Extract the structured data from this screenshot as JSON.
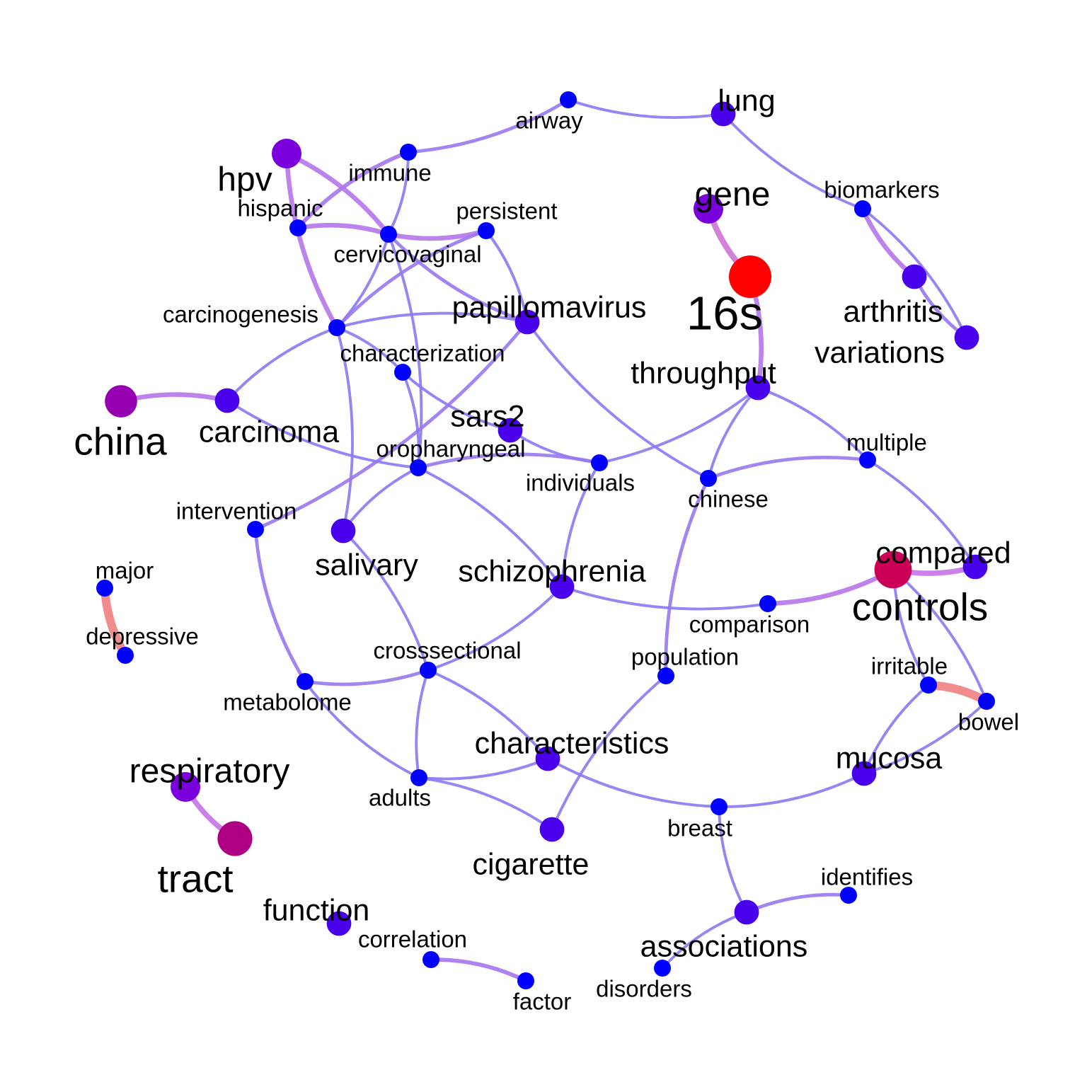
{
  "colors": {
    "low": "#0000FF",
    "mid": "#7A00DC",
    "high": "#FF0000",
    "edge_low": "#7A7AF5",
    "edge_mid": "#C474E8",
    "edge_high": "#F08080"
  },
  "nodes": [
    {
      "id": "airway",
      "label": "airway",
      "weight": 0.0
    },
    {
      "id": "lung",
      "label": "lung",
      "weight": 0.3
    },
    {
      "id": "immune",
      "label": "immune",
      "weight": 0.0
    },
    {
      "id": "hpv",
      "label": "hpv",
      "weight": 0.5
    },
    {
      "id": "gene",
      "label": "gene",
      "weight": 0.5
    },
    {
      "id": "biomarkers",
      "label": "biomarkers",
      "weight": 0.0
    },
    {
      "id": "hispanic",
      "label": "hispanic",
      "weight": 0.0
    },
    {
      "id": "persistent",
      "label": "persistent",
      "weight": 0.0
    },
    {
      "id": "cervicovaginal",
      "label": "cervicovaginal",
      "weight": 0.0
    },
    {
      "id": "16s",
      "label": "16s",
      "weight": 1.0
    },
    {
      "id": "arthritis",
      "label": "arthritis",
      "weight": 0.3
    },
    {
      "id": "papillomavirus",
      "label": "papillomavirus",
      "weight": 0.3
    },
    {
      "id": "carcinogenesis",
      "label": "carcinogenesis",
      "weight": 0.0
    },
    {
      "id": "variations",
      "label": "variations",
      "weight": 0.3
    },
    {
      "id": "characterization",
      "label": "characterization",
      "weight": 0.0
    },
    {
      "id": "throughput",
      "label": "throughput",
      "weight": 0.3
    },
    {
      "id": "china",
      "label": "china",
      "weight": 0.6
    },
    {
      "id": "carcinoma",
      "label": "carcinoma",
      "weight": 0.3
    },
    {
      "id": "sars2",
      "label": "sars2",
      "weight": 0.3
    },
    {
      "id": "multiple",
      "label": "multiple",
      "weight": 0.0
    },
    {
      "id": "oropharyngeal",
      "label": "oropharyngeal",
      "weight": 0.0
    },
    {
      "id": "individuals",
      "label": "individuals",
      "weight": 0.0
    },
    {
      "id": "chinese",
      "label": "chinese",
      "weight": 0.0
    },
    {
      "id": "intervention",
      "label": "intervention",
      "weight": 0.0
    },
    {
      "id": "salivary",
      "label": "salivary",
      "weight": 0.3
    },
    {
      "id": "schizophrenia",
      "label": "schizophrenia",
      "weight": 0.3
    },
    {
      "id": "compared",
      "label": "compared",
      "weight": 0.3
    },
    {
      "id": "controls",
      "label": "controls",
      "weight": 0.8
    },
    {
      "id": "major",
      "label": "major",
      "weight": 0.0
    },
    {
      "id": "depressive",
      "label": "depressive",
      "weight": 0.0
    },
    {
      "id": "comparison",
      "label": "comparison",
      "weight": 0.0
    },
    {
      "id": "crosssectional",
      "label": "crosssectional",
      "weight": 0.0
    },
    {
      "id": "population",
      "label": "population",
      "weight": 0.0
    },
    {
      "id": "irritable",
      "label": "irritable",
      "weight": 0.0
    },
    {
      "id": "metabolome",
      "label": "metabolome",
      "weight": 0.0
    },
    {
      "id": "bowel",
      "label": "bowel",
      "weight": 0.0
    },
    {
      "id": "characteristics",
      "label": "characteristics",
      "weight": 0.3
    },
    {
      "id": "mucosa",
      "label": "mucosa",
      "weight": 0.3
    },
    {
      "id": "respiratory",
      "label": "respiratory",
      "weight": 0.5
    },
    {
      "id": "adults",
      "label": "adults",
      "weight": 0.0
    },
    {
      "id": "breast",
      "label": "breast",
      "weight": 0.0
    },
    {
      "id": "tract",
      "label": "tract",
      "weight": 0.7
    },
    {
      "id": "cigarette",
      "label": "cigarette",
      "weight": 0.3
    },
    {
      "id": "identifies",
      "label": "identifies",
      "weight": 0.0
    },
    {
      "id": "function",
      "label": "function",
      "weight": 0.3
    },
    {
      "id": "associations",
      "label": "associations",
      "weight": 0.3
    },
    {
      "id": "correlation",
      "label": "correlation",
      "weight": 0.0
    },
    {
      "id": "disorders",
      "label": "disorders",
      "weight": 0.0
    },
    {
      "id": "factor",
      "label": "factor",
      "weight": 0.0
    }
  ],
  "edges": [
    {
      "source": "airway",
      "target": "lung",
      "weight": 0.1
    },
    {
      "source": "airway",
      "target": "immune",
      "weight": 0.2
    },
    {
      "source": "lung",
      "target": "biomarkers",
      "weight": 0.1
    },
    {
      "source": "immune",
      "target": "cervicovaginal",
      "weight": 0.1
    },
    {
      "source": "immune",
      "target": "hispanic",
      "weight": 0.3
    },
    {
      "source": "hpv",
      "target": "cervicovaginal",
      "weight": 0.4
    },
    {
      "source": "hpv",
      "target": "carcinogenesis",
      "weight": 0.4
    },
    {
      "source": "hispanic",
      "target": "cervicovaginal",
      "weight": 0.4
    },
    {
      "source": "cervicovaginal",
      "target": "persistent",
      "weight": 0.4
    },
    {
      "source": "cervicovaginal",
      "target": "carcinogenesis",
      "weight": 0.1
    },
    {
      "source": "cervicovaginal",
      "target": "papillomavirus",
      "weight": 0.2
    },
    {
      "source": "cervicovaginal",
      "target": "oropharyngeal",
      "weight": 0.1
    },
    {
      "source": "persistent",
      "target": "carcinogenesis",
      "weight": 0.2
    },
    {
      "source": "persistent",
      "target": "papillomavirus",
      "weight": 0.1
    },
    {
      "source": "gene",
      "target": "16s",
      "weight": 0.6
    },
    {
      "source": "16s",
      "target": "throughput",
      "weight": 0.4
    },
    {
      "source": "biomarkers",
      "target": "arthritis",
      "weight": 0.4
    },
    {
      "source": "biomarkers",
      "target": "variations",
      "weight": 0.1
    },
    {
      "source": "arthritis",
      "target": "variations",
      "weight": 0.2
    },
    {
      "source": "carcinogenesis",
      "target": "papillomavirus",
      "weight": 0.1
    },
    {
      "source": "carcinogenesis",
      "target": "carcinoma",
      "weight": 0.1
    },
    {
      "source": "carcinogenesis",
      "target": "salivary",
      "weight": 0.1
    },
    {
      "source": "papillomavirus",
      "target": "chinese",
      "weight": 0.1
    },
    {
      "source": "papillomavirus",
      "target": "intervention",
      "weight": 0.2
    },
    {
      "source": "characterization",
      "target": "sars2",
      "weight": 0.1
    },
    {
      "source": "characterization",
      "target": "oropharyngeal",
      "weight": 0.1
    },
    {
      "source": "characterization",
      "target": "carcinogenesis",
      "weight": 0.1
    },
    {
      "source": "china",
      "target": "carcinoma",
      "weight": 0.4
    },
    {
      "source": "carcinoma",
      "target": "oropharyngeal",
      "weight": 0.1
    },
    {
      "source": "throughput",
      "target": "individuals",
      "weight": 0.1
    },
    {
      "source": "throughput",
      "target": "chinese",
      "weight": 0.1
    },
    {
      "source": "throughput",
      "target": "multiple",
      "weight": 0.1
    },
    {
      "source": "sars2",
      "target": "individuals",
      "weight": 0.1
    },
    {
      "source": "oropharyngeal",
      "target": "individuals",
      "weight": 0.2
    },
    {
      "source": "oropharyngeal",
      "target": "salivary",
      "weight": 0.1
    },
    {
      "source": "oropharyngeal",
      "target": "schizophrenia",
      "weight": 0.1
    },
    {
      "source": "individuals",
      "target": "schizophrenia",
      "weight": 0.1
    },
    {
      "source": "chinese",
      "target": "multiple",
      "weight": 0.2
    },
    {
      "source": "chinese",
      "target": "population",
      "weight": 0.2
    },
    {
      "source": "multiple",
      "target": "compared",
      "weight": 0.1
    },
    {
      "source": "intervention",
      "target": "metabolome",
      "weight": 0.2
    },
    {
      "source": "salivary",
      "target": "crosssectional",
      "weight": 0.1
    },
    {
      "source": "schizophrenia",
      "target": "comparison",
      "weight": 0.1
    },
    {
      "source": "schizophrenia",
      "target": "crosssectional",
      "weight": 0.1
    },
    {
      "source": "controls",
      "target": "compared",
      "weight": 0.5
    },
    {
      "source": "controls",
      "target": "comparison",
      "weight": 0.4
    },
    {
      "source": "controls",
      "target": "irritable",
      "weight": 0.1
    },
    {
      "source": "controls",
      "target": "bowel",
      "weight": 0.1
    },
    {
      "source": "major",
      "target": "depressive",
      "weight": 1.0
    },
    {
      "source": "crosssectional",
      "target": "metabolome",
      "weight": 0.2
    },
    {
      "source": "crosssectional",
      "target": "adults",
      "weight": 0.1
    },
    {
      "source": "crosssectional",
      "target": "characteristics",
      "weight": 0.1
    },
    {
      "source": "population",
      "target": "cigarette",
      "weight": 0.1
    },
    {
      "source": "irritable",
      "target": "bowel",
      "weight": 1.0
    },
    {
      "source": "irritable",
      "target": "mucosa",
      "weight": 0.1
    },
    {
      "source": "bowel",
      "target": "mucosa",
      "weight": 0.1
    },
    {
      "source": "metabolome",
      "target": "adults",
      "weight": 0.1
    },
    {
      "source": "characteristics",
      "target": "adults",
      "weight": 0.1
    },
    {
      "source": "characteristics",
      "target": "breast",
      "weight": 0.1
    },
    {
      "source": "mucosa",
      "target": "breast",
      "weight": 0.1
    },
    {
      "source": "respiratory",
      "target": "tract",
      "weight": 0.5
    },
    {
      "source": "adults",
      "target": "cigarette",
      "weight": 0.1
    },
    {
      "source": "breast",
      "target": "associations",
      "weight": 0.1
    },
    {
      "source": "associations",
      "target": "identifies",
      "weight": 0.2
    },
    {
      "source": "associations",
      "target": "disorders",
      "weight": 0.1
    },
    {
      "source": "correlation",
      "target": "factor",
      "weight": 0.3
    }
  ]
}
